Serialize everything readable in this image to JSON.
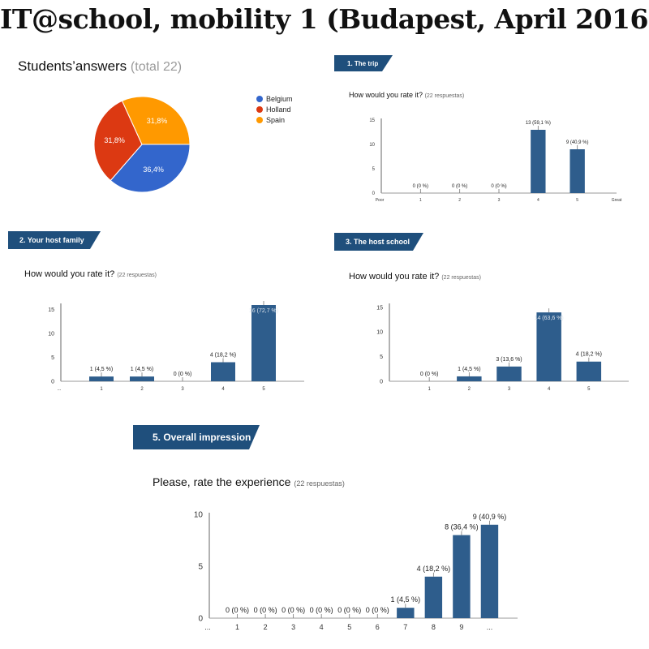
{
  "page": {
    "title": "IT@school, mobility 1 (Budapest, April 2016)"
  },
  "students": {
    "label": "Students’answers",
    "total": "(total 22)"
  },
  "colors": {
    "ribbon": "#1f4f7c",
    "bar": "#2e5d8c",
    "belgium": "#3366cc",
    "holland": "#dc3912",
    "spain": "#ff9900"
  },
  "sections": {
    "trip": {
      "ribbon": "1. The trip",
      "question": "How would you rate it?",
      "responses": "(22 respuestas)"
    },
    "host_family": {
      "ribbon": "2. Your host family",
      "question": "How would you rate it?",
      "responses": "(22 respuestas)"
    },
    "host_school": {
      "ribbon": "3. The host school",
      "question": "How would you rate it?",
      "responses": "(22 respuestas)"
    },
    "overall": {
      "ribbon": "5. Overall impression",
      "question": "Please, rate the experience",
      "responses": "(22 respuestas)"
    }
  },
  "chart_data": [
    {
      "id": "pie",
      "type": "pie",
      "categories": [
        "Belgium",
        "Holland",
        "Spain"
      ],
      "values": [
        36.4,
        31.8,
        31.8
      ],
      "labels": [
        "36,4%",
        "31,8%",
        "31,8%"
      ],
      "colors": [
        "#3366cc",
        "#dc3912",
        "#ff9900"
      ],
      "legend": "right"
    },
    {
      "id": "trip",
      "type": "bar",
      "categories": [
        "1",
        "2",
        "3",
        "4",
        "5"
      ],
      "values": [
        0,
        0,
        0,
        13,
        9
      ],
      "labels": [
        "0 (0 %)",
        "0 (0 %)",
        "0 (0 %)",
        "13 (59,1 %)",
        "9 (40,9 %)"
      ],
      "yticks": [
        0,
        5,
        10,
        15
      ],
      "ylim": [
        0,
        15
      ],
      "x_start_label": "Poor",
      "x_end_label": "Great"
    },
    {
      "id": "host_family",
      "type": "bar",
      "categories": [
        "1",
        "2",
        "3",
        "4",
        "5"
      ],
      "values": [
        1,
        1,
        0,
        4,
        16
      ],
      "labels": [
        "1 (4,5 %)",
        "1 (4,5 %)",
        "0 (0 %)",
        "4 (18,2 %)",
        "16 (72,7 %)"
      ],
      "yticks": [
        0,
        5,
        10,
        15
      ],
      "ylim": [
        0,
        16
      ],
      "x_start_label": "...",
      "x_end_label": ""
    },
    {
      "id": "host_school",
      "type": "bar",
      "categories": [
        "1",
        "2",
        "3",
        "4",
        "5"
      ],
      "values": [
        0,
        1,
        3,
        14,
        4
      ],
      "labels": [
        "0 (0 %)",
        "1 (4,5 %)",
        "3 (13,6 %)",
        "14 (63,6 %)",
        "4 (18,2 %)"
      ],
      "yticks": [
        0,
        5,
        10,
        15
      ],
      "ylim": [
        0,
        15.5
      ],
      "x_start_label": "",
      "x_end_label": ""
    },
    {
      "id": "overall",
      "type": "bar",
      "categories": [
        "1",
        "2",
        "3",
        "4",
        "5",
        "6",
        "7",
        "8",
        "9",
        "..."
      ],
      "values": [
        0,
        0,
        0,
        0,
        0,
        0,
        1,
        4,
        8,
        9
      ],
      "labels": [
        "0 (0 %)",
        "0 (0 %)",
        "0 (0 %)",
        "0 (0 %)",
        "0 (0 %)",
        "0 (0 %)",
        "1 (4,5 %)",
        "4 (18,2 %)",
        "8 (36,4 %)",
        "9 (40,9 %)"
      ],
      "yticks": [
        0,
        5,
        10
      ],
      "ylim": [
        0,
        10
      ],
      "x_start_label": "...",
      "x_end_label": ""
    }
  ]
}
